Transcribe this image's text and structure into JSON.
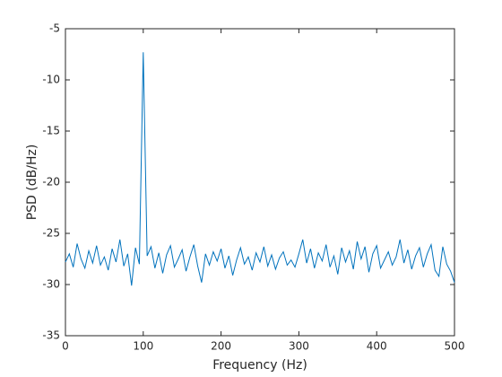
{
  "chart_data": {
    "type": "line",
    "x_label": "Frequency (Hz)",
    "y_label": "PSD (dB/Hz)",
    "x": [
      0,
      5,
      10,
      15,
      20,
      25,
      30,
      35,
      40,
      45,
      50,
      55,
      60,
      65,
      70,
      75,
      80,
      85,
      90,
      95,
      100,
      105,
      110,
      115,
      120,
      125,
      130,
      135,
      140,
      145,
      150,
      155,
      160,
      165,
      170,
      175,
      180,
      185,
      190,
      195,
      200,
      205,
      210,
      215,
      220,
      225,
      230,
      235,
      240,
      245,
      250,
      255,
      260,
      265,
      270,
      275,
      280,
      285,
      290,
      295,
      300,
      305,
      310,
      315,
      320,
      325,
      330,
      335,
      340,
      345,
      350,
      355,
      360,
      365,
      370,
      375,
      380,
      385,
      390,
      395,
      400,
      405,
      410,
      415,
      420,
      425,
      430,
      435,
      440,
      445,
      450,
      455,
      460,
      465,
      470,
      475,
      480,
      485,
      490,
      495,
      500
    ],
    "series": [
      {
        "color": "#0072bd",
        "values": [
          -27.8,
          -27.0,
          -28.3,
          -26.0,
          -27.5,
          -28.4,
          -26.7,
          -27.9,
          -26.2,
          -28.1,
          -27.3,
          -28.6,
          -26.5,
          -27.8,
          -25.6,
          -28.2,
          -27.0,
          -30.1,
          -26.4,
          -28.0,
          -7.3,
          -27.2,
          -26.3,
          -28.4,
          -26.9,
          -28.9,
          -27.1,
          -26.2,
          -28.3,
          -27.5,
          -26.6,
          -28.7,
          -27.3,
          -26.1,
          -28.2,
          -29.8,
          -27.0,
          -28.1,
          -26.8,
          -27.7,
          -26.5,
          -28.4,
          -27.2,
          -29.1,
          -27.6,
          -26.4,
          -28.0,
          -27.3,
          -28.6,
          -26.9,
          -27.8,
          -26.3,
          -28.2,
          -27.1,
          -28.5,
          -27.4,
          -26.8,
          -28.1,
          -27.6,
          -28.3,
          -27.0,
          -25.6,
          -27.9,
          -26.5,
          -28.4,
          -26.9,
          -27.7,
          -26.1,
          -28.3,
          -27.2,
          -29.0,
          -26.4,
          -27.8,
          -26.7,
          -28.5,
          -25.8,
          -27.5,
          -26.3,
          -28.8,
          -27.0,
          -26.2,
          -28.4,
          -27.6,
          -26.8,
          -28.1,
          -27.3,
          -25.6,
          -27.9,
          -26.6,
          -28.5,
          -27.2,
          -26.4,
          -28.3,
          -27.0,
          -26.1,
          -28.6,
          -29.2,
          -26.3,
          -28.0,
          -28.7,
          -29.8
        ]
      }
    ],
    "xlim": [
      0,
      500
    ],
    "ylim": [
      -35,
      -5
    ],
    "xticks": [
      0,
      100,
      200,
      300,
      400,
      500
    ],
    "yticks": [
      -35,
      -30,
      -25,
      -20,
      -15,
      -10,
      -5
    ],
    "grid": false
  }
}
